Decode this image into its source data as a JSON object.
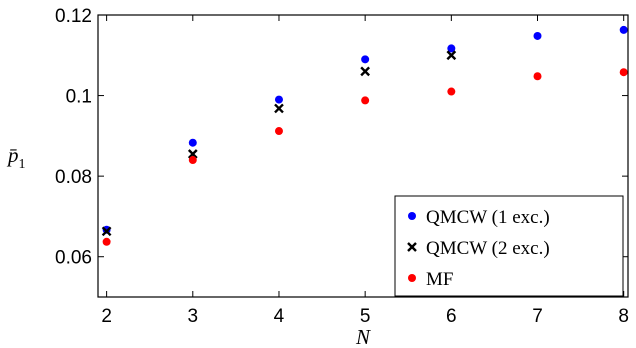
{
  "chart_data": {
    "type": "scatter",
    "title": "",
    "xlabel": "N",
    "ylabel": "p̄",
    "ylabel_sub": "1",
    "xlim": [
      1.9,
      8.05
    ],
    "ylim": [
      0.05,
      0.12
    ],
    "x_ticks": [
      2,
      3,
      4,
      5,
      6,
      7,
      8
    ],
    "x_tick_labels": [
      "2",
      "3",
      "4",
      "5",
      "6",
      "7",
      "8"
    ],
    "y_ticks": [
      0.06,
      0.08,
      0.1,
      0.12
    ],
    "y_tick_labels": [
      "0.06",
      "0.08",
      "0.1",
      "0.12"
    ],
    "grid": false,
    "legend_position": "bottom-right",
    "series": [
      {
        "name": "QMCW (1 exc.)",
        "marker": "circle",
        "color": "#0000ff",
        "x": [
          2,
          3,
          4,
          5,
          6,
          7,
          8
        ],
        "y": [
          0.0667,
          0.0883,
          0.099,
          0.109,
          0.1117,
          0.1148,
          0.1163
        ]
      },
      {
        "name": "QMCW (2 exc.)",
        "marker": "x",
        "color": "#000000",
        "x": [
          2,
          3,
          4,
          5,
          6
        ],
        "y": [
          0.0663,
          0.0855,
          0.0968,
          0.106,
          0.11
        ]
      },
      {
        "name": "MF",
        "marker": "circle",
        "color": "#ff0000",
        "x": [
          2,
          3,
          4,
          5,
          6,
          7,
          8
        ],
        "y": [
          0.0637,
          0.084,
          0.0912,
          0.0988,
          0.101,
          0.1048,
          0.1058
        ]
      }
    ]
  }
}
